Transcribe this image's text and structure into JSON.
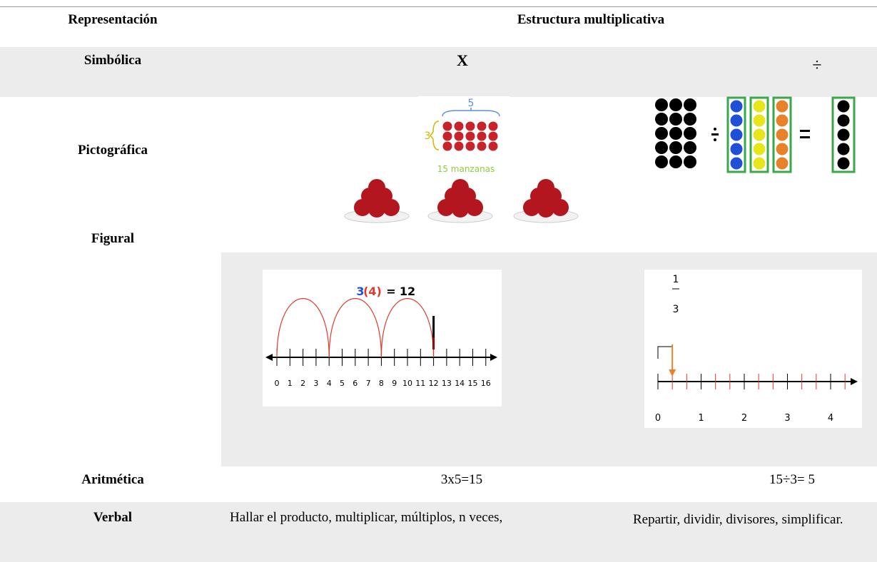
{
  "table": {
    "header": [
      "Representación",
      "Estructura multiplicativa"
    ],
    "rows": [
      [
        "Simbólica",
        "X",
        "÷"
      ],
      [
        "Pictográfica"
      ],
      [
        "Figural"
      ],
      [
        "Aritmética",
        "3x5=15",
        "15÷3= 5"
      ],
      [
        "Verbal",
        "Hallar el producto, multiplicar, múltiplos, n veces,",
        "Repartir, dividir, divisores, simplificar."
      ]
    ]
  },
  "figures": {
    "apples": {
      "top": "5",
      "side": "3",
      "caption": "15 manzanas"
    },
    "number_line": {
      "equation": [
        "3",
        "(4)",
        "=",
        "12"
      ],
      "ticks": [
        "0",
        "1",
        "2",
        "3",
        "4",
        "5",
        "6",
        "7",
        "8",
        "9",
        "10",
        "11",
        "12",
        "13",
        "14",
        "15",
        "16"
      ]
    },
    "fraction_line": {
      "fraction": [
        "1",
        "3"
      ],
      "ticks": [
        "0",
        "1",
        "2",
        "3",
        "4"
      ]
    }
  }
}
